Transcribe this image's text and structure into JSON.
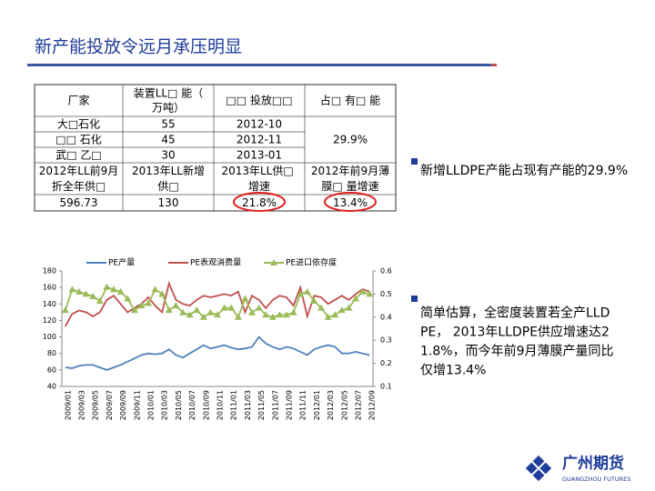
{
  "title": "新产能投放令远月承压明显",
  "table": {
    "header": [
      "厂家",
      "装置LL□ 能（万吨）",
      "□□ 投放□□",
      "占□ 有□ 能"
    ],
    "rows": [
      [
        "大□石化",
        55,
        "2012-10"
      ],
      [
        "□□ 石化",
        45,
        "2012-11"
      ],
      [
        "武□ 乙□",
        30,
        "2013-01"
      ]
    ],
    "share": "29.9%",
    "header2": [
      "2012年LL前9月折全年供□",
      "2013年LL新增供□",
      "2013年LL供□ 增速",
      "2012年前9月薄膜□ 量增速"
    ],
    "row2": [
      596.73,
      130,
      "21.8%",
      "13.4%"
    ]
  },
  "bullets": [
    "新增LLDPE产能占现有产能的29.9%",
    "简单估算，全密度装置若全产LLDPE， 2013年LLDPE供应增速达21.8%，而今年前9月薄膜产量同比仅增13.4%"
  ],
  "logo": {
    "name": "广州期货",
    "english": "GUANGZHOU FUTURES"
  },
  "chart_data": {
    "type": "line",
    "categories": [
      "2009/01",
      null,
      "2009/03",
      null,
      "2009/05",
      null,
      "2009/07",
      null,
      "2009/09",
      null,
      "2009/11",
      null,
      "2010/01",
      null,
      "2010/03",
      null,
      "2010/05",
      null,
      "2010/07",
      null,
      "2010/09",
      null,
      "2010/11",
      null,
      "2011/01",
      null,
      "2011/03",
      null,
      "2011/05",
      null,
      "2011/07",
      null,
      "2011/09",
      null,
      "2011/11",
      null,
      "2012/01",
      null,
      "2012/03",
      null,
      "2012/05",
      null,
      "2012/07",
      null,
      "2012/09"
    ],
    "series": [
      {
        "name": "PE产量",
        "color": "#4f81bd",
        "values": [
          63,
          62,
          65,
          66,
          66,
          63,
          60,
          63,
          66,
          70,
          74,
          78,
          80,
          79,
          80,
          85,
          78,
          75,
          80,
          85,
          90,
          86,
          88,
          90,
          87,
          85,
          86,
          88,
          100,
          92,
          88,
          85,
          88,
          86,
          82,
          78,
          85,
          88,
          90,
          88,
          80,
          80,
          82,
          80,
          78
        ]
      },
      {
        "name": "PE表观消费量",
        "color": "#c0504d",
        "values": [
          113,
          128,
          132,
          130,
          125,
          130,
          145,
          150,
          140,
          130,
          135,
          140,
          148,
          138,
          130,
          165,
          145,
          140,
          138,
          145,
          150,
          148,
          150,
          152,
          150,
          155,
          130,
          150,
          145,
          135,
          145,
          150,
          148,
          138,
          160,
          125,
          150,
          148,
          140,
          145,
          150,
          145,
          152,
          158,
          155
        ]
      },
      {
        "name": "PE进口依存度",
        "color": "#9bbb59",
        "axis": "y2",
        "values": [
          0.43,
          0.52,
          0.51,
          0.5,
          0.49,
          0.47,
          0.53,
          0.52,
          0.51,
          0.48,
          0.43,
          0.45,
          0.46,
          0.52,
          0.5,
          0.43,
          0.45,
          0.42,
          0.41,
          0.43,
          0.4,
          0.42,
          0.41,
          0.44,
          0.44,
          0.4,
          0.48,
          0.42,
          0.44,
          0.41,
          0.4,
          0.41,
          0.41,
          0.42,
          0.5,
          0.51,
          0.47,
          0.44,
          0.4,
          0.41,
          0.43,
          0.44,
          0.48,
          0.51,
          0.5
        ]
      }
    ],
    "ylim": [
      40,
      180
    ],
    "yticks": [
      40,
      60,
      80,
      100,
      120,
      140,
      160,
      180
    ],
    "y2lim": [
      0.1,
      0.6
    ],
    "y2ticks": [
      0.1,
      0.2,
      0.3,
      0.4,
      0.5,
      0.6
    ]
  }
}
